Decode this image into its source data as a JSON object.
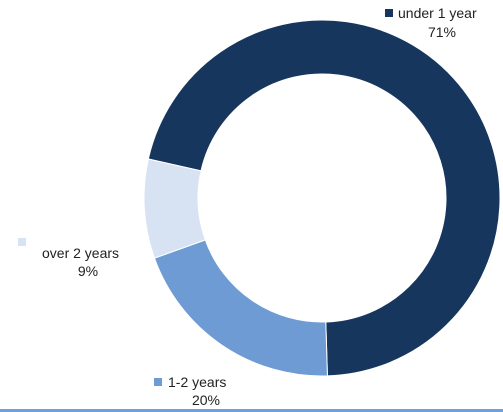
{
  "chart_data": {
    "type": "pie",
    "style": "donut",
    "categories": [
      "under 1 year",
      "1-2 years",
      "over 2 years"
    ],
    "values": [
      71,
      20,
      9
    ],
    "value_labels": [
      "71%",
      "20%",
      "9%"
    ],
    "colors": [
      "#17365d",
      "#6e9bd4",
      "#d7e3f2"
    ],
    "legend": "inline labels with square markers"
  }
}
